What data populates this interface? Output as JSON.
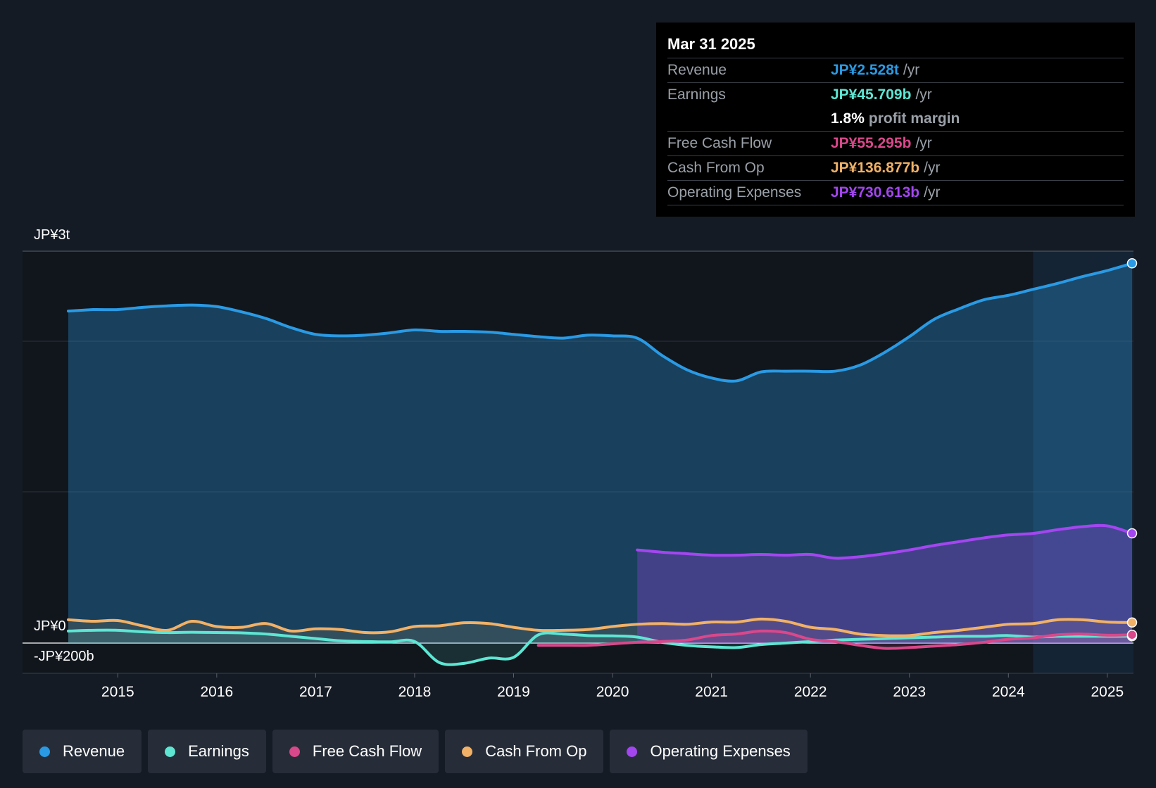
{
  "tooltip": {
    "date": "Mar 31 2025",
    "rows": [
      {
        "label": "Revenue",
        "value": "JP¥2.528t",
        "unit": "/yr",
        "color": "#2a9ae4"
      },
      {
        "label": "Earnings",
        "value": "JP¥45.709b",
        "unit": "/yr",
        "color": "#5ee6d3"
      },
      {
        "label": "",
        "value": "1.8%",
        "unit": "profit margin",
        "color": "#ffffff"
      },
      {
        "label": "Free Cash Flow",
        "value": "JP¥55.295b",
        "unit": "/yr",
        "color": "#d9488b"
      },
      {
        "label": "Cash From Op",
        "value": "JP¥136.877b",
        "unit": "/yr",
        "color": "#f1b167"
      },
      {
        "label": "Operating Expenses",
        "value": "JP¥730.613b",
        "unit": "/yr",
        "color": "#a346f0"
      }
    ]
  },
  "legend": [
    {
      "label": "Revenue",
      "color": "#2a9ae4"
    },
    {
      "label": "Earnings",
      "color": "#5ee6d3"
    },
    {
      "label": "Free Cash Flow",
      "color": "#d9488b"
    },
    {
      "label": "Cash From Op",
      "color": "#f1b167"
    },
    {
      "label": "Operating Expenses",
      "color": "#a346f0"
    }
  ],
  "chart_data": {
    "type": "area",
    "title": "",
    "xlabel": "",
    "ylabel": "",
    "y_axis_labels": [
      "JP¥3t",
      "JP¥0",
      "-JP¥200b"
    ],
    "x_ticks": [
      "2015",
      "2016",
      "2017",
      "2018",
      "2019",
      "2020",
      "2021",
      "2022",
      "2023",
      "2024",
      "2025"
    ],
    "xlim": [
      2014.5,
      2025.25
    ],
    "ylim": [
      -200,
      2600
    ],
    "units": "JP¥ billions",
    "forecast_shading_from": 2024.25,
    "series": [
      {
        "name": "Revenue",
        "color": "#2a9ae4",
        "points": [
          [
            2014.5,
            2210
          ],
          [
            2014.75,
            2220
          ],
          [
            2015.0,
            2220
          ],
          [
            2015.25,
            2235
          ],
          [
            2015.5,
            2245
          ],
          [
            2015.75,
            2250
          ],
          [
            2016.0,
            2240
          ],
          [
            2016.25,
            2205
          ],
          [
            2016.5,
            2160
          ],
          [
            2016.75,
            2100
          ],
          [
            2017.0,
            2055
          ],
          [
            2017.25,
            2045
          ],
          [
            2017.5,
            2050
          ],
          [
            2017.75,
            2065
          ],
          [
            2018.0,
            2085
          ],
          [
            2018.25,
            2075
          ],
          [
            2018.5,
            2075
          ],
          [
            2018.75,
            2070
          ],
          [
            2019.0,
            2055
          ],
          [
            2019.25,
            2040
          ],
          [
            2019.5,
            2030
          ],
          [
            2019.75,
            2050
          ],
          [
            2020.0,
            2045
          ],
          [
            2020.25,
            2030
          ],
          [
            2020.5,
            1915
          ],
          [
            2020.75,
            1820
          ],
          [
            2021.0,
            1765
          ],
          [
            2021.25,
            1745
          ],
          [
            2021.5,
            1805
          ],
          [
            2021.75,
            1810
          ],
          [
            2022.0,
            1810
          ],
          [
            2022.25,
            1810
          ],
          [
            2022.5,
            1850
          ],
          [
            2022.75,
            1935
          ],
          [
            2023.0,
            2040
          ],
          [
            2023.25,
            2155
          ],
          [
            2023.5,
            2225
          ],
          [
            2023.75,
            2285
          ],
          [
            2024.0,
            2315
          ],
          [
            2024.25,
            2355
          ],
          [
            2024.5,
            2395
          ],
          [
            2024.75,
            2440
          ],
          [
            2025.0,
            2480
          ],
          [
            2025.25,
            2528
          ]
        ]
      },
      {
        "name": "Earnings",
        "color": "#5ee6d3",
        "points": [
          [
            2014.5,
            80
          ],
          [
            2014.75,
            85
          ],
          [
            2015.0,
            85
          ],
          [
            2015.25,
            75
          ],
          [
            2015.5,
            70
          ],
          [
            2015.75,
            72
          ],
          [
            2016.0,
            70
          ],
          [
            2016.25,
            68
          ],
          [
            2016.5,
            60
          ],
          [
            2016.75,
            45
          ],
          [
            2017.0,
            30
          ],
          [
            2017.25,
            15
          ],
          [
            2017.5,
            10
          ],
          [
            2017.75,
            8
          ],
          [
            2018.0,
            10
          ],
          [
            2018.25,
            -130
          ],
          [
            2018.5,
            -135
          ],
          [
            2018.75,
            -100
          ],
          [
            2019.0,
            -95
          ],
          [
            2019.25,
            55
          ],
          [
            2019.5,
            60
          ],
          [
            2019.75,
            50
          ],
          [
            2020.0,
            48
          ],
          [
            2020.25,
            40
          ],
          [
            2020.5,
            5
          ],
          [
            2020.75,
            -15
          ],
          [
            2021.0,
            -25
          ],
          [
            2021.25,
            -30
          ],
          [
            2021.5,
            -10
          ],
          [
            2021.75,
            0
          ],
          [
            2022.0,
            10
          ],
          [
            2022.25,
            20
          ],
          [
            2022.5,
            25
          ],
          [
            2022.75,
            30
          ],
          [
            2023.0,
            35
          ],
          [
            2023.25,
            40
          ],
          [
            2023.5,
            45
          ],
          [
            2023.75,
            45
          ],
          [
            2024.0,
            50
          ],
          [
            2024.25,
            40
          ],
          [
            2024.5,
            45
          ],
          [
            2024.75,
            45
          ],
          [
            2025.0,
            45
          ],
          [
            2025.25,
            45.7
          ]
        ]
      },
      {
        "name": "Free Cash Flow",
        "color": "#d9488b",
        "points": [
          [
            2019.25,
            -15
          ],
          [
            2019.5,
            -15
          ],
          [
            2019.75,
            -15
          ],
          [
            2020.0,
            -5
          ],
          [
            2020.25,
            5
          ],
          [
            2020.5,
            10
          ],
          [
            2020.75,
            20
          ],
          [
            2021.0,
            50
          ],
          [
            2021.25,
            60
          ],
          [
            2021.5,
            80
          ],
          [
            2021.75,
            70
          ],
          [
            2022.0,
            25
          ],
          [
            2022.25,
            10
          ],
          [
            2022.5,
            -15
          ],
          [
            2022.75,
            -35
          ],
          [
            2023.0,
            -30
          ],
          [
            2023.25,
            -20
          ],
          [
            2023.5,
            -10
          ],
          [
            2023.75,
            5
          ],
          [
            2024.0,
            25
          ],
          [
            2024.25,
            35
          ],
          [
            2024.5,
            55
          ],
          [
            2024.75,
            60
          ],
          [
            2025.0,
            52
          ],
          [
            2025.25,
            55.3
          ]
        ]
      },
      {
        "name": "Cash From Op",
        "color": "#f1b167",
        "points": [
          [
            2014.5,
            155
          ],
          [
            2014.75,
            145
          ],
          [
            2015.0,
            150
          ],
          [
            2015.25,
            115
          ],
          [
            2015.5,
            85
          ],
          [
            2015.75,
            145
          ],
          [
            2016.0,
            110
          ],
          [
            2016.25,
            105
          ],
          [
            2016.5,
            130
          ],
          [
            2016.75,
            80
          ],
          [
            2017.0,
            95
          ],
          [
            2017.25,
            90
          ],
          [
            2017.5,
            70
          ],
          [
            2017.75,
            75
          ],
          [
            2018.0,
            110
          ],
          [
            2018.25,
            115
          ],
          [
            2018.5,
            135
          ],
          [
            2018.75,
            130
          ],
          [
            2019.0,
            105
          ],
          [
            2019.25,
            85
          ],
          [
            2019.5,
            85
          ],
          [
            2019.75,
            90
          ],
          [
            2020.0,
            110
          ],
          [
            2020.25,
            125
          ],
          [
            2020.5,
            130
          ],
          [
            2020.75,
            125
          ],
          [
            2021.0,
            140
          ],
          [
            2021.25,
            140
          ],
          [
            2021.5,
            160
          ],
          [
            2021.75,
            145
          ],
          [
            2022.0,
            105
          ],
          [
            2022.25,
            90
          ],
          [
            2022.5,
            60
          ],
          [
            2022.75,
            50
          ],
          [
            2023.0,
            50
          ],
          [
            2023.25,
            70
          ],
          [
            2023.5,
            85
          ],
          [
            2023.75,
            105
          ],
          [
            2024.0,
            125
          ],
          [
            2024.25,
            130
          ],
          [
            2024.5,
            155
          ],
          [
            2024.75,
            155
          ],
          [
            2025.0,
            140
          ],
          [
            2025.25,
            136.9
          ]
        ]
      },
      {
        "name": "Operating Expenses",
        "color": "#a346f0",
        "points": [
          [
            2020.25,
            620
          ],
          [
            2020.5,
            605
          ],
          [
            2020.75,
            595
          ],
          [
            2021.0,
            585
          ],
          [
            2021.25,
            585
          ],
          [
            2021.5,
            590
          ],
          [
            2021.75,
            585
          ],
          [
            2022.0,
            590
          ],
          [
            2022.25,
            565
          ],
          [
            2022.5,
            575
          ],
          [
            2022.75,
            595
          ],
          [
            2023.0,
            620
          ],
          [
            2023.25,
            650
          ],
          [
            2023.5,
            675
          ],
          [
            2023.75,
            700
          ],
          [
            2024.0,
            720
          ],
          [
            2024.25,
            730
          ],
          [
            2024.5,
            755
          ],
          [
            2024.75,
            775
          ],
          [
            2025.0,
            780
          ],
          [
            2025.25,
            730.6
          ]
        ]
      }
    ]
  }
}
